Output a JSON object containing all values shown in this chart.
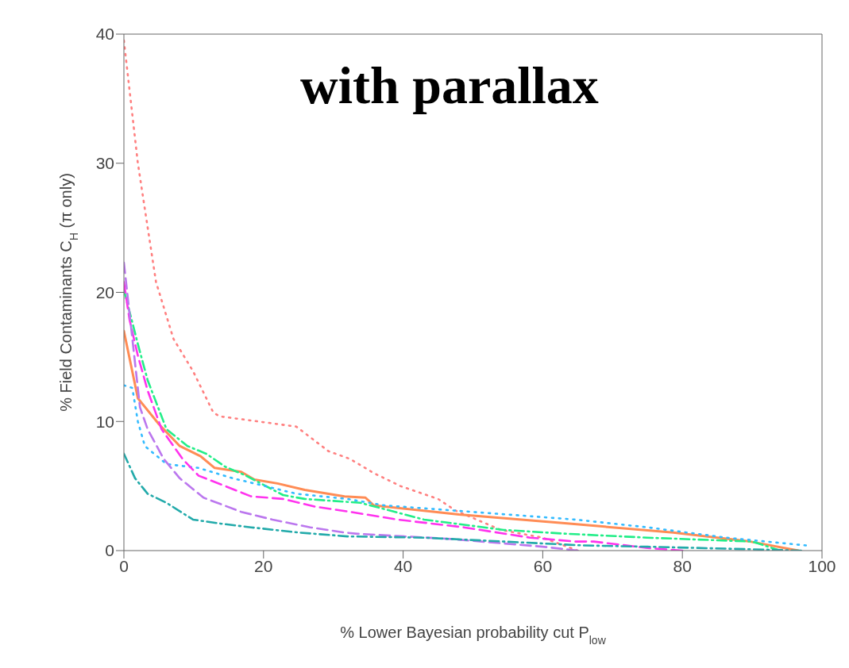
{
  "chart_data": {
    "type": "line",
    "title": "with parallax",
    "xlabel": "% Lower Bayesian probability cut P$_{low}$",
    "ylabel": "% Field Contaminants C$_{H}$ (π only)",
    "xlim": [
      0,
      100
    ],
    "ylim": [
      0,
      40
    ],
    "xticks": [
      0,
      20,
      40,
      60,
      80,
      100
    ],
    "yticks": [
      0,
      10,
      20,
      30,
      40
    ],
    "grid": false,
    "legend": false,
    "marker": "none",
    "series": [
      {
        "color": "#ff8080",
        "line_style": "dotted",
        "x": [
          0,
          2,
          4.6,
          7.1,
          9.9,
          12.8,
          13.7,
          22,
          24.7,
          29.3,
          32.4,
          35.8,
          39.6,
          45,
          47.5,
          54,
          60,
          65
        ],
        "values": [
          39.5,
          30,
          20.8,
          16.4,
          13.9,
          10.7,
          10.4,
          9.8,
          9.6,
          7.7,
          7.1,
          6,
          5,
          4,
          3.1,
          1.6,
          1,
          0
        ]
      },
      {
        "color": "#ff8c55",
        "line_style": "solid",
        "x": [
          0,
          2,
          5,
          8,
          11,
          13,
          16.8,
          18.7,
          22,
          25.9,
          31.6,
          34.6,
          35.8,
          48,
          63.5,
          78.7,
          89.7,
          96.6
        ],
        "values": [
          17,
          11.8,
          9.8,
          8.1,
          7.3,
          6.4,
          6.1,
          5.5,
          5.2,
          4.7,
          4.2,
          4.1,
          3.5,
          2.8,
          2.1,
          1.4,
          0.7,
          0
        ]
      },
      {
        "color": "#22ee88",
        "line_style": "dashdot",
        "x": [
          0,
          2,
          3.4,
          6.1,
          9.1,
          11.8,
          14.5,
          17.5,
          22.8,
          25.9,
          33.9,
          43,
          54.4,
          63.5,
          75,
          90,
          94
        ],
        "values": [
          20.2,
          16,
          13.2,
          9.4,
          8.1,
          7.5,
          6.5,
          5.8,
          4.3,
          4,
          3.7,
          2.4,
          1.6,
          1.3,
          1,
          0.7,
          0
        ]
      },
      {
        "color": "#33bbff",
        "line_style": "dotted",
        "x": [
          0,
          1.2,
          2,
          3,
          6.1,
          10.7,
          15.6,
          20.2,
          24.7,
          32,
          37.3,
          49.8,
          64.7,
          75,
          86.3,
          97.7
        ],
        "values": [
          12.8,
          12.6,
          10,
          8.1,
          6.7,
          6.4,
          5.6,
          5,
          4.4,
          4,
          3.5,
          3,
          2.4,
          1.8,
          1,
          0.4
        ]
      },
      {
        "color": "#ff33ee",
        "line_style": "dashed",
        "x": [
          0,
          0.8,
          2,
          3.4,
          5.4,
          8.4,
          10.7,
          14.5,
          18.2,
          22.8,
          27.4,
          32.4,
          39.2,
          48.7,
          58.2,
          64.7,
          67.3,
          75,
          80
        ],
        "values": [
          20.8,
          17.9,
          15.1,
          12.4,
          9.4,
          7.1,
          5.8,
          5,
          4.2,
          4,
          3.4,
          3,
          2.4,
          1.8,
          1,
          0.7,
          0.7,
          0.2,
          0
        ]
      },
      {
        "color": "#bb77ee",
        "line_style": "dashed",
        "x": [
          0,
          2.3,
          3.4,
          5.7,
          8,
          11.4,
          16.8,
          21.3,
          26.7,
          31.6,
          33.5,
          46.8,
          60,
          65
        ],
        "values": [
          22.3,
          11.1,
          9.4,
          7.1,
          5.6,
          4.1,
          3,
          2.4,
          1.8,
          1.4,
          1.3,
          0.9,
          0.3,
          0
        ]
      },
      {
        "color": "#22aaaa",
        "line_style": "dashdot",
        "x": [
          0,
          1.6,
          3.4,
          6.1,
          9.9,
          13.7,
          18.2,
          25,
          32,
          43,
          54.4,
          65.8,
          75,
          90,
          97
        ],
        "values": [
          7.5,
          5.6,
          4.4,
          3.7,
          2.4,
          2.1,
          1.8,
          1.4,
          1.1,
          1,
          0.7,
          0.4,
          0.3,
          0.1,
          0
        ]
      }
    ]
  }
}
